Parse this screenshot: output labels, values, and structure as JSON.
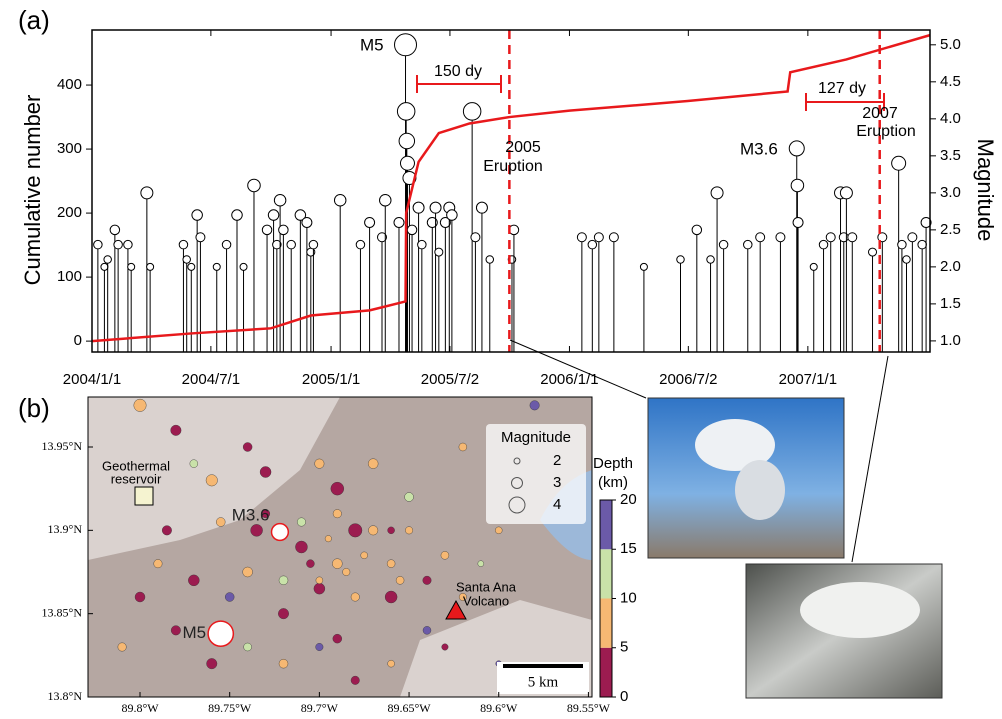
{
  "chart_data": [
    {
      "type": "stem",
      "title": "(a)",
      "ylabel": "Cumulative number",
      "y2label": "Magnitude",
      "xlim": [
        "2004-01-01",
        "2007-07-07"
      ],
      "xticks": [
        {
          "value": "2004-01-01",
          "label": "2004/1/1"
        },
        {
          "value": "2004-07-01",
          "label": "2004/7/1"
        },
        {
          "value": "2005-01-01",
          "label": "2005/1/1"
        },
        {
          "value": "2005-07-02",
          "label": "2005/7/2"
        },
        {
          "value": "2006-01-01",
          "label": "2006/1/1"
        },
        {
          "value": "2006-07-02",
          "label": "2006/7/2"
        },
        {
          "value": "2007-01-01",
          "label": "2007/1/1"
        }
      ],
      "ylim": [
        -17,
        486
      ],
      "yticks": [
        0,
        100,
        200,
        300,
        400
      ],
      "y2lim": [
        0.85,
        5.2
      ],
      "y2ticks": [
        {
          "value": 1,
          "label": "1.0"
        },
        {
          "value": 1.5,
          "label": "1.5"
        },
        {
          "value": 2,
          "label": "2.0"
        },
        {
          "value": 2.5,
          "label": "2.5"
        },
        {
          "value": 3,
          "label": "3.0"
        },
        {
          "value": 3.5,
          "label": "3.5"
        },
        {
          "value": 4,
          "label": "4.0"
        },
        {
          "value": 4.5,
          "label": "4.5"
        },
        {
          "value": 5,
          "label": "5.0"
        }
      ],
      "events": {
        "axis": "y2",
        "color": "#000000",
        "x": [
          "2004-01-10",
          "2004-01-20",
          "2004-01-25",
          "2004-02-05",
          "2004-02-10",
          "2004-02-25",
          "2004-03-01",
          "2004-03-25",
          "2004-03-30",
          "2004-05-20",
          "2004-05-25",
          "2004-06-01",
          "2004-06-10",
          "2004-06-15",
          "2004-07-10",
          "2004-07-25",
          "2004-08-10",
          "2004-08-20",
          "2004-09-05",
          "2004-09-25",
          "2004-10-05",
          "2004-10-10",
          "2004-10-15",
          "2004-10-20",
          "2004-11-01",
          "2004-11-15",
          "2004-11-25",
          "2004-12-01",
          "2004-12-05",
          "2005-01-15",
          "2005-02-15",
          "2005-03-01",
          "2005-03-20",
          "2005-03-25",
          "2005-04-15",
          "2005-04-25",
          "2005-04-26",
          "2005-04-27",
          "2005-04-28",
          "2005-05-01",
          "2005-05-05",
          "2005-05-15",
          "2005-05-20",
          "2005-06-05",
          "2005-06-10",
          "2005-06-15",
          "2005-06-25",
          "2005-07-01",
          "2005-07-05",
          "2005-08-05",
          "2005-08-10",
          "2005-08-20",
          "2005-09-01",
          "2005-10-05",
          "2005-10-08",
          "2006-01-20",
          "2006-02-05",
          "2006-02-15",
          "2006-03-10",
          "2006-04-25",
          "2006-06-20",
          "2006-07-15",
          "2006-08-05",
          "2006-08-15",
          "2006-08-25",
          "2006-10-01",
          "2006-10-20",
          "2006-11-20",
          "2006-12-15",
          "2006-12-16",
          "2006-12-17",
          "2007-01-10",
          "2007-01-25",
          "2007-02-05",
          "2007-02-20",
          "2007-02-25",
          "2007-03-01",
          "2007-03-10",
          "2007-04-10",
          "2007-04-25",
          "2007-05-20",
          "2007-05-25",
          "2007-06-01",
          "2007-06-10",
          "2007-06-25",
          "2007-07-01"
        ],
        "values": [
          2.3,
          2.0,
          2.1,
          2.5,
          2.3,
          2.3,
          2.0,
          3.0,
          2.0,
          2.3,
          2.1,
          2.0,
          2.7,
          2.4,
          2.0,
          2.3,
          2.7,
          2.0,
          3.1,
          2.5,
          2.7,
          2.3,
          2.9,
          2.5,
          2.3,
          2.7,
          2.6,
          2.2,
          2.3,
          2.9,
          2.3,
          2.6,
          2.4,
          2.9,
          2.6,
          5.0,
          4.1,
          3.7,
          3.4,
          3.2,
          2.5,
          2.8,
          2.3,
          2.6,
          2.8,
          2.2,
          2.6,
          2.8,
          2.7,
          4.1,
          2.4,
          2.8,
          2.1,
          2.1,
          2.5,
          2.4,
          2.3,
          2.4,
          2.4,
          2.0,
          2.1,
          2.5,
          2.1,
          3.0,
          2.3,
          2.3,
          2.4,
          2.4,
          3.6,
          3.1,
          2.6,
          2.0,
          2.3,
          2.4,
          3.0,
          2.4,
          3.0,
          2.4,
          2.2,
          2.4,
          3.4,
          2.3,
          2.1,
          2.4,
          2.3,
          2.6
        ]
      },
      "cumulative": {
        "color": "#e8191c",
        "x": [
          "2004-01-01",
          "2004-06-01",
          "2004-10-01",
          "2004-12-01",
          "2005-03-01",
          "2005-04-25",
          "2005-04-26",
          "2005-05-15",
          "2005-06-15",
          "2005-08-01",
          "2005-10-01",
          "2006-01-01",
          "2006-07-01",
          "2006-12-01",
          "2006-12-05",
          "2007-03-01",
          "2007-07-07"
        ],
        "values": [
          0,
          12,
          20,
          40,
          48,
          62,
          200,
          280,
          325,
          340,
          350,
          360,
          375,
          390,
          420,
          440,
          478
        ]
      },
      "eruptions": [
        "2005-10-01",
        "2007-04-21"
      ],
      "annotations": {
        "m5": "M5",
        "m36": "M3.6",
        "gap1": "150 dy",
        "gap2": "127 dy",
        "erup1": [
          "2005",
          "Eruption"
        ],
        "erup2": [
          "2007",
          "Eruption"
        ]
      }
    },
    {
      "type": "map",
      "title": "(b)",
      "xlim": [
        89.829,
        89.548
      ],
      "xticks": [
        {
          "value": 89.8,
          "label": "89.8°W"
        },
        {
          "value": 89.75,
          "label": "89.75°W"
        },
        {
          "value": 89.7,
          "label": "89.7°W"
        },
        {
          "value": 89.65,
          "label": "89.65°W"
        },
        {
          "value": 89.6,
          "label": "89.6°W"
        },
        {
          "value": 89.55,
          "label": "89.55°W"
        }
      ],
      "ylim": [
        13.8,
        13.98
      ],
      "yticks": [
        {
          "value": 13.8,
          "label": "13.8°N"
        },
        {
          "value": 13.85,
          "label": "13.85°N"
        },
        {
          "value": 13.9,
          "label": "13.9°N"
        },
        {
          "value": 13.95,
          "label": "13.95°N"
        }
      ],
      "points": {
        "x": [
          89.71,
          89.69,
          89.68,
          89.72,
          89.7,
          89.66,
          89.67,
          89.73,
          89.76,
          89.78,
          89.8,
          89.74,
          89.7,
          89.69,
          89.65,
          89.64,
          89.63,
          89.66,
          89.68,
          89.72,
          89.75,
          89.77,
          89.78,
          89.76,
          89.74,
          89.72,
          89.7,
          89.68,
          89.66,
          89.64,
          89.62,
          89.61,
          89.6,
          89.65,
          89.67,
          89.71,
          89.735,
          89.755,
          89.785,
          89.79,
          89.8,
          89.81,
          89.7,
          89.685,
          89.695,
          89.675,
          89.705,
          89.69,
          89.58,
          89.62,
          89.63,
          89.6,
          89.77,
          89.73,
          89.74,
          89.66,
          89.655,
          89.69
        ],
        "y": [
          13.89,
          13.88,
          13.9,
          13.87,
          13.865,
          13.88,
          13.9,
          13.91,
          13.93,
          13.96,
          13.975,
          13.95,
          13.94,
          13.925,
          13.9,
          13.87,
          13.885,
          13.86,
          13.86,
          13.85,
          13.86,
          13.87,
          13.84,
          13.82,
          13.83,
          13.82,
          13.83,
          13.81,
          13.82,
          13.84,
          13.86,
          13.88,
          13.9,
          13.92,
          13.94,
          13.905,
          13.9,
          13.905,
          13.9,
          13.88,
          13.86,
          13.83,
          13.87,
          13.875,
          13.895,
          13.885,
          13.88,
          13.91,
          13.975,
          13.95,
          13.83,
          13.82,
          13.94,
          13.935,
          13.875,
          13.9,
          13.87,
          13.835
        ],
        "size": [
          3.2,
          2.8,
          3.5,
          2.6,
          3.0,
          2.4,
          2.7,
          2.5,
          3.1,
          2.9,
          3.3,
          2.6,
          2.7,
          3.4,
          2.3,
          2.5,
          2.4,
          3.2,
          2.5,
          2.9,
          2.6,
          3.0,
          2.7,
          2.9,
          2.4,
          2.6,
          2.3,
          2.5,
          2.2,
          2.4,
          2.3,
          2.0,
          2.2,
          2.6,
          2.8,
          2.5,
          3.2,
          2.6,
          2.7,
          2.5,
          2.8,
          2.5,
          2.2,
          2.3,
          2.1,
          2.2,
          2.4,
          2.5,
          2.7,
          2.4,
          2.1,
          2.0,
          2.4,
          3.0,
          2.8,
          2.2,
          2.4,
          2.6
        ],
        "depth": [
          3,
          8,
          3,
          12,
          2,
          9,
          7,
          3,
          8,
          3,
          8,
          2,
          8,
          3,
          9,
          4,
          8,
          3,
          8,
          3,
          17,
          3,
          4,
          3,
          12,
          8,
          17,
          3,
          9,
          18,
          7,
          12,
          8,
          13,
          8,
          12,
          3,
          8,
          3,
          8,
          3,
          8,
          8,
          9,
          7,
          8,
          3,
          8,
          17,
          8,
          3,
          17,
          12,
          3,
          8,
          3,
          7,
          3
        ]
      },
      "highlights": {
        "x": [
          89.755,
          89.722
        ],
        "y": [
          13.838,
          13.899
        ],
        "size": [
          5.0,
          3.6
        ],
        "labels": [
          "M5",
          "M3.6"
        ]
      },
      "legend_title": "Magnitude",
      "legend_sizes": [
        2,
        3,
        4
      ],
      "colorbar_label": [
        "Depth",
        "(km)"
      ],
      "colorbar_ticks": [
        0,
        5,
        10,
        15,
        20
      ],
      "colorbar_colors": [
        "#9c1c50",
        "#f6b873",
        "#c9e2a9",
        "#6b5aa8"
      ],
      "reservoir_label": [
        "Geothermal",
        "reservoir"
      ],
      "volcano_label": [
        "Santa Ana",
        "Volcano"
      ],
      "scale_label": "5 km"
    }
  ]
}
